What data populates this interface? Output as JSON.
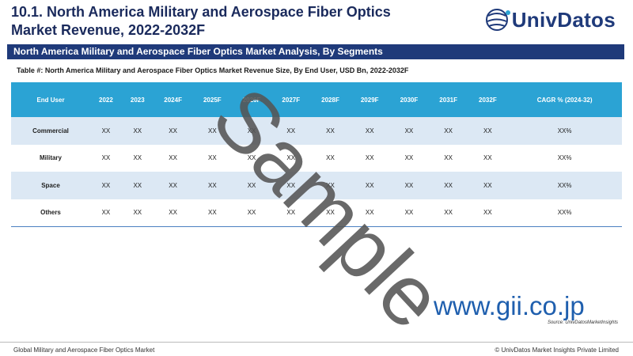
{
  "header": {
    "title": "10.1. North America Military and Aerospace Fiber Optics Market Revenue, 2022-2032F",
    "logo_text": "UnivDatos"
  },
  "banner": {
    "text": "North America Military and Aerospace Fiber Optics Market Analysis, By Segments"
  },
  "table": {
    "caption": "Table #: North America Military and Aerospace Fiber Optics Market Revenue Size, By End User, USD Bn, 2022-2032F",
    "columns": [
      "End User",
      "2022",
      "2023",
      "2024F",
      "2025F",
      "2026F",
      "2027F",
      "2028F",
      "2029F",
      "2030F",
      "2031F",
      "2032F",
      "CAGR % (2024-32)"
    ],
    "rows": [
      {
        "label": "Commercial",
        "values": [
          "XX",
          "XX",
          "XX",
          "XX",
          "XX",
          "XX",
          "XX",
          "XX",
          "XX",
          "XX",
          "XX",
          "XX%"
        ]
      },
      {
        "label": "Military",
        "values": [
          "XX",
          "XX",
          "XX",
          "XX",
          "XX",
          "XX",
          "XX",
          "XX",
          "XX",
          "XX",
          "XX",
          "XX%"
        ]
      },
      {
        "label": "Space",
        "values": [
          "XX",
          "XX",
          "XX",
          "XX",
          "XX",
          "XX",
          "XX",
          "XX",
          "XX",
          "XX",
          "XX",
          "XX%"
        ]
      },
      {
        "label": "Others",
        "values": [
          "XX",
          "XX",
          "XX",
          "XX",
          "XX",
          "XX",
          "XX",
          "XX",
          "XX",
          "XX",
          "XX",
          "XX%"
        ]
      }
    ]
  },
  "source": "Source: UnivDatosMarketInsights",
  "watermark": {
    "sample": "Sample",
    "url": "www.gii.co.jp"
  },
  "footer": {
    "left": "Global Military and Aerospace Fiber Optics Market",
    "right": "© UnivDatos Market Insights Private Limited"
  },
  "colors": {
    "navy": "#1f3a7a",
    "header_blue": "#2ba3d4",
    "row_shade": "#dce8f4"
  }
}
